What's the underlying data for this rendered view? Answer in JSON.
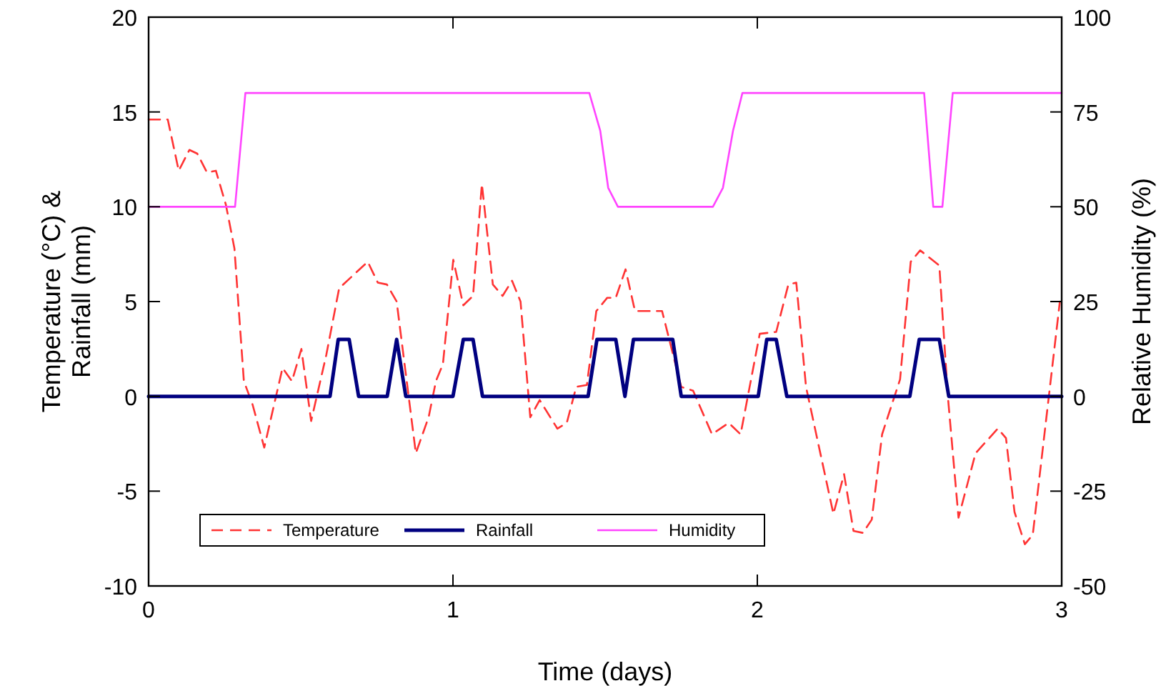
{
  "chart_data": {
    "type": "line",
    "xlabel": "Time (days)",
    "ylabel": "Temperature (°C) &\nRainfall (mm)",
    "y2label": "Relative Humidity (%)",
    "xlim": [
      0,
      3
    ],
    "xticks": [
      0,
      1,
      2,
      3
    ],
    "ylim": [
      -10,
      20
    ],
    "yticks": [
      -10,
      -5,
      0,
      5,
      10,
      15,
      20
    ],
    "y2lim": [
      -50,
      100
    ],
    "y2ticks": [
      -50,
      -25,
      0,
      25,
      50,
      75,
      100
    ],
    "legend": "bottom left",
    "grid": false,
    "series": [
      {
        "name": "Temperature",
        "color": "#ff3333",
        "line_style": "dashed",
        "x": [
          0,
          0.063,
          0.099,
          0.134,
          0.16,
          0.192,
          0.221,
          0.254,
          0.282,
          0.313,
          0.341,
          0.38,
          0.44,
          0.471,
          0.502,
          0.534,
          0.584,
          0.626,
          0.72,
          0.753,
          0.783,
          0.815,
          0.878,
          0.92,
          0.944,
          0.967,
          1.001,
          1.034,
          1.066,
          1.095,
          1.131,
          1.163,
          1.194,
          1.222,
          1.254,
          1.285,
          1.343,
          1.374,
          1.405,
          1.44,
          1.471,
          1.507,
          1.535,
          1.567,
          1.598,
          1.687,
          1.75,
          1.789,
          1.851,
          1.906,
          1.945,
          2.008,
          2.062,
          2.102,
          2.128,
          2.16,
          2.25,
          2.285,
          2.316,
          2.347,
          2.376,
          2.41,
          2.469,
          2.504,
          2.535,
          2.598,
          2.626,
          2.661,
          2.717,
          2.79,
          2.817,
          2.845,
          2.879,
          2.905,
          2.994
        ],
        "values": [
          14.6,
          14.6,
          11.9,
          13,
          12.8,
          11.8,
          11.9,
          10.1,
          7.8,
          0.8,
          -0.4,
          -2.7,
          1.5,
          0.8,
          2.5,
          -1.3,
          2.2,
          5.7,
          7.1,
          6,
          5.9,
          5,
          -3,
          -1.1,
          0.8,
          1.7,
          7.2,
          4.8,
          5.3,
          11.2,
          5.9,
          5.3,
          6.1,
          5,
          -1.1,
          -0.2,
          -1.7,
          -1.4,
          0.5,
          0.6,
          4.5,
          5.2,
          5.2,
          6.7,
          4.5,
          4.5,
          0.5,
          0.3,
          -2,
          -1.4,
          -2,
          3.3,
          3.4,
          5.9,
          6,
          0.5,
          -6.2,
          -4.1,
          -7.1,
          -7.2,
          -6.5,
          -2,
          0.9,
          7.1,
          7.7,
          6.9,
          0,
          -6.4,
          -3,
          -1.7,
          -2.2,
          -6.1,
          -7.8,
          -7.3,
          5
        ]
      },
      {
        "name": "Rainfall",
        "color": "#000080",
        "line_style": "solid",
        "x": [
          0,
          0.596,
          0.623,
          0.659,
          0.69,
          0.784,
          0.815,
          0.845,
          1.0,
          1.034,
          1.066,
          1.097,
          1.444,
          1.473,
          1.535,
          1.565,
          1.593,
          1.722,
          1.75,
          2.003,
          2.031,
          2.062,
          2.097,
          2.501,
          2.532,
          2.598,
          2.629,
          3
        ],
        "values": [
          0,
          0,
          3,
          3,
          0,
          0,
          3,
          0,
          0,
          3,
          3,
          0,
          0,
          3,
          3,
          0,
          3,
          3,
          0,
          0,
          3,
          3,
          0,
          0,
          3,
          3,
          0,
          0
        ]
      },
      {
        "name": "Humidity",
        "color": "#ff44ff",
        "line_style": "solid",
        "axis": "y2",
        "x": [
          0,
          0.284,
          0.318,
          1.448,
          1.484,
          1.51,
          1.542,
          1.854,
          1.887,
          1.92,
          1.951,
          2.548,
          2.578,
          2.608,
          2.642,
          3
        ],
        "values": [
          50,
          50,
          80,
          80,
          70,
          55,
          50,
          50,
          55,
          70,
          80,
          80,
          50,
          50,
          80,
          80
        ]
      }
    ]
  }
}
